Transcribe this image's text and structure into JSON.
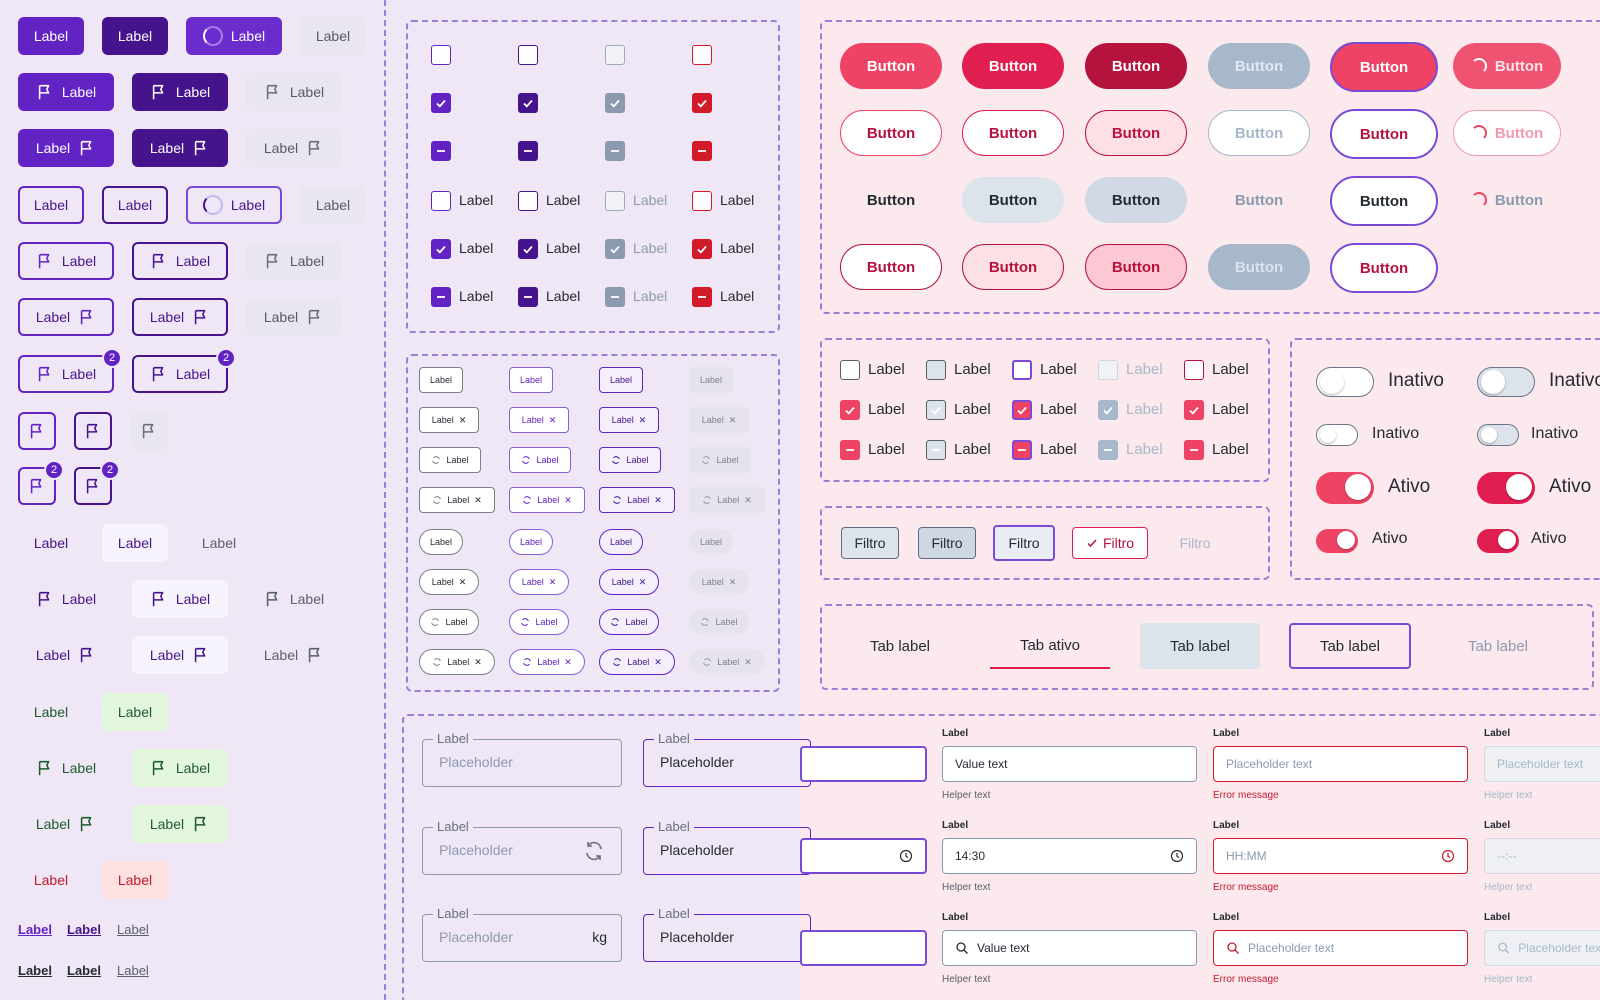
{
  "left_buttons": {
    "label": "Label",
    "badge": "2",
    "links": [
      "Label",
      "Label",
      "Label",
      "Label",
      "Label",
      "Label"
    ]
  },
  "checkboxes": {
    "label": "Label"
  },
  "chips": {
    "label": "Label"
  },
  "fields": {
    "legend": "Label",
    "placeholder": "Placeholder",
    "suffix_kg": "kg"
  },
  "pink_buttons": {
    "label": "Button"
  },
  "pink_checkboxes": {
    "label": "Label"
  },
  "filters": {
    "label": "Filtro"
  },
  "toggles": {
    "inactive": "Inativo",
    "active": "Ativo"
  },
  "tabs": {
    "items": [
      "Tab label",
      "Tab ativo",
      "Tab label",
      "Tab label",
      "Tab label"
    ]
  },
  "text_fields": {
    "label": "Label",
    "value_text": "Value text",
    "placeholder_text": "Placeholder text",
    "helper": "Helper text",
    "error": "Error message",
    "time_value": "14:30",
    "time_placeholder": "HH:MM",
    "time_disabled": "--:--",
    "placeholder_truncated": "Placeholder tex"
  },
  "colors": {
    "primary": "#6223c4",
    "primary_dark": "#45148c",
    "pink": "#ef4365",
    "pink_dark": "#b5123d",
    "error": "#d11a2a"
  }
}
